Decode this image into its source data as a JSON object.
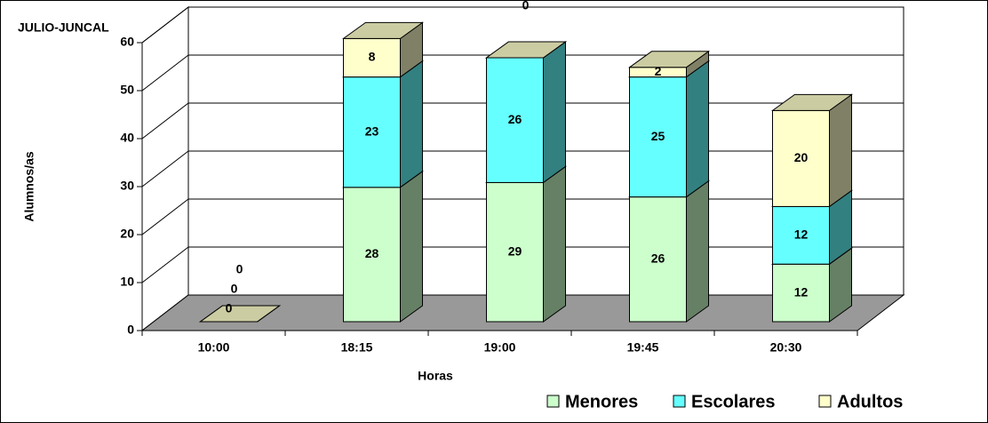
{
  "chart_data": {
    "type": "bar3d_stacked",
    "title": "JULIO-JUNCAL",
    "x_label": "Horas",
    "y_label": "Alumnos/as",
    "categories": [
      "10:00",
      "18:15",
      "19:00",
      "19:45",
      "20:30"
    ],
    "series": [
      {
        "name": "Menores",
        "color": "#ccffcc",
        "values": [
          0,
          28,
          29,
          26,
          12
        ]
      },
      {
        "name": "Escolares",
        "color": "#66ffff",
        "values": [
          0,
          23,
          26,
          25,
          12
        ]
      },
      {
        "name": "Adultos",
        "color": "#ffffcc",
        "values": [
          0,
          8,
          0,
          2,
          20
        ]
      }
    ],
    "ylim": [
      0,
      60
    ],
    "yticks": [
      0,
      10,
      20,
      30,
      40,
      50,
      60
    ],
    "grid": true,
    "legend": "bottom-right"
  }
}
